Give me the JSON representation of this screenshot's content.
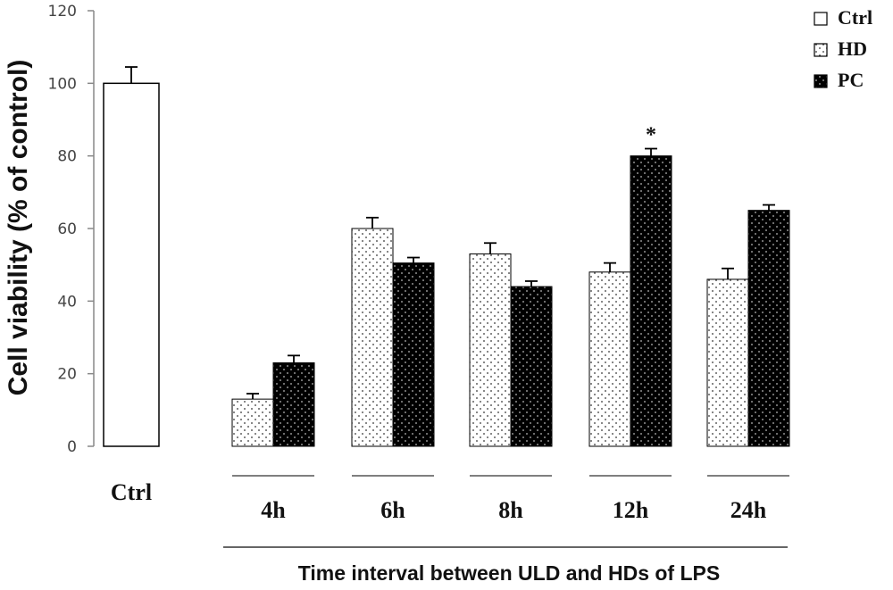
{
  "chart_data": {
    "type": "bar",
    "ylabel": "Cell viability (% of control)",
    "xlabel": "Time interval between ULD and HDs of LPS",
    "ylim": [
      0,
      120
    ],
    "yticks": [
      "0",
      "20",
      "40",
      "60",
      "80",
      "100",
      "120"
    ],
    "legend_position": "top-right",
    "legend": [
      {
        "label": "Ctrl",
        "pattern": "white"
      },
      {
        "label": "HD",
        "pattern": "dotted-white"
      },
      {
        "label": "PC",
        "pattern": "dotted-black"
      }
    ],
    "control": {
      "label": "Ctrl",
      "value": 100,
      "error": 4.5
    },
    "categories": [
      "4h",
      "6h",
      "8h",
      "12h",
      "24h"
    ],
    "series": [
      {
        "name": "HD",
        "values": [
          13,
          60,
          53,
          48,
          46
        ],
        "errors": [
          1.5,
          3,
          3,
          2.5,
          3
        ]
      },
      {
        "name": "PC",
        "values": [
          23,
          50.5,
          44,
          80,
          65
        ],
        "errors": [
          2,
          1.5,
          1.5,
          2,
          1.5
        ]
      }
    ],
    "annotations": [
      {
        "category": "12h",
        "series": "PC",
        "text": "*"
      }
    ]
  }
}
